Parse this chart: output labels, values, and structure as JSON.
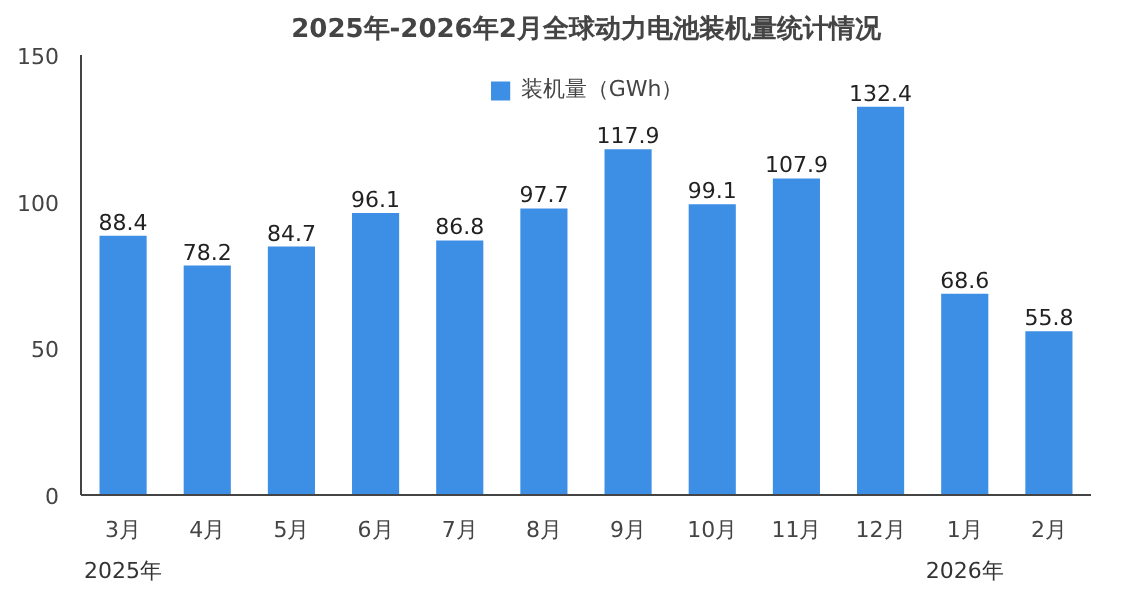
{
  "chart_data": {
    "type": "bar",
    "title": "2025年-2026年2月全球动力电池装机量统计情况",
    "categories": [
      "3月",
      "4月",
      "5月",
      "6月",
      "7月",
      "8月",
      "9月",
      "10月",
      "11月",
      "12月",
      "1月",
      "2月"
    ],
    "series": [
      {
        "name": "装机量（GWh）",
        "color": "#3d8fe6",
        "values": [
          88.4,
          78.2,
          84.7,
          96.1,
          86.8,
          97.7,
          117.9,
          99.1,
          107.9,
          132.4,
          68.6,
          55.8
        ]
      }
    ],
    "ylim": [
      0,
      150
    ],
    "yticks": [
      0,
      50,
      100,
      150
    ],
    "grid": false,
    "legend": "top",
    "data_labels": true,
    "annotations": [
      "2025年",
      "2026年"
    ]
  }
}
